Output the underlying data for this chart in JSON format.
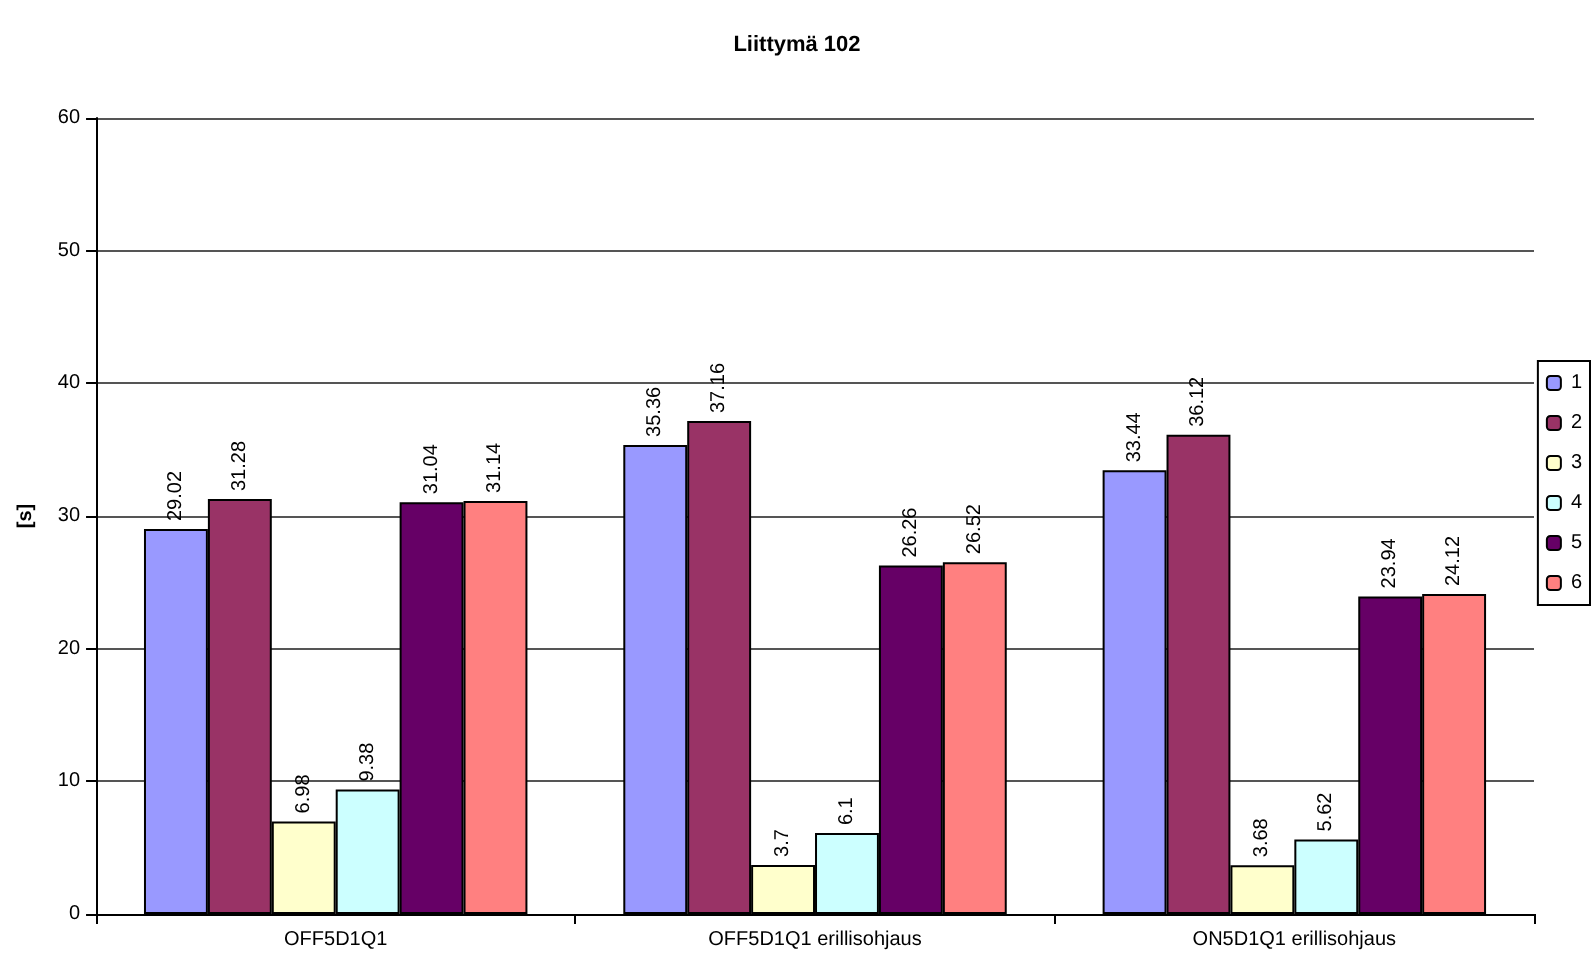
{
  "chart_data": {
    "type": "bar",
    "title": "Liittymä 102",
    "ylabel": "[s]",
    "categories": [
      "OFF5D1Q1",
      "OFF5D1Q1 erillisohjaus",
      "ON5D1Q1 erillisohjaus"
    ],
    "series": [
      {
        "name": "1",
        "color": "#9999ff",
        "values": [
          29.02,
          35.36,
          33.44
        ]
      },
      {
        "name": "2",
        "color": "#993366",
        "values": [
          31.28,
          37.16,
          36.12
        ]
      },
      {
        "name": "3",
        "color": "#ffffcc",
        "values": [
          6.98,
          3.7,
          3.68
        ]
      },
      {
        "name": "4",
        "color": "#ccffff",
        "values": [
          9.38,
          6.1,
          5.62
        ]
      },
      {
        "name": "5",
        "color": "#660066",
        "values": [
          31.04,
          26.26,
          23.94
        ]
      },
      {
        "name": "6",
        "color": "#ff8080",
        "values": [
          31.14,
          26.52,
          24.12
        ]
      }
    ],
    "ylim": [
      0,
      60
    ],
    "yticks": [
      0,
      10,
      20,
      30,
      40,
      50,
      60
    ],
    "grid": "y",
    "legend": "right",
    "data_labels": true
  }
}
